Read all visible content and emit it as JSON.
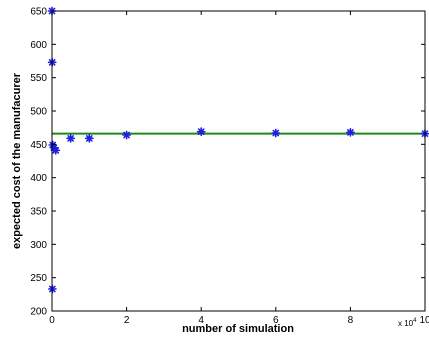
{
  "chart_data": {
    "type": "scatter",
    "title": "",
    "xlabel": "number of simulation",
    "ylabel": "expected cost of the manufacurer",
    "x_multiplier_label": "x 10",
    "x_multiplier_exponent": "4",
    "xlim": [
      0,
      100000
    ],
    "ylim": [
      200,
      650
    ],
    "x_tick_values": [
      0,
      20000,
      40000,
      60000,
      80000,
      100000
    ],
    "x_tick_labels": [
      "0",
      "2",
      "4",
      "6",
      "8",
      "10"
    ],
    "y_tick_values": [
      200,
      250,
      300,
      350,
      400,
      450,
      500,
      550,
      600,
      650
    ],
    "y_tick_labels": [
      "200",
      "250",
      "300",
      "350",
      "400",
      "450",
      "500",
      "550",
      "600",
      "650"
    ],
    "grid": false,
    "series": [
      {
        "kind": "scatter",
        "marker": "asterisk",
        "color": "#1f1fe0",
        "points": [
          {
            "x": 10,
            "y": 650
          },
          {
            "x": 50,
            "y": 573
          },
          {
            "x": 100,
            "y": 233
          },
          {
            "x": 200,
            "y": 449
          },
          {
            "x": 500,
            "y": 445
          },
          {
            "x": 1000,
            "y": 441
          },
          {
            "x": 5000,
            "y": 459
          },
          {
            "x": 10000,
            "y": 459
          },
          {
            "x": 20000,
            "y": 464
          },
          {
            "x": 40000,
            "y": 469
          },
          {
            "x": 60000,
            "y": 467
          },
          {
            "x": 80000,
            "y": 468
          },
          {
            "x": 100000,
            "y": 466
          }
        ]
      },
      {
        "kind": "reference-line",
        "color": "#1a8a1a",
        "y": 466
      }
    ]
  }
}
